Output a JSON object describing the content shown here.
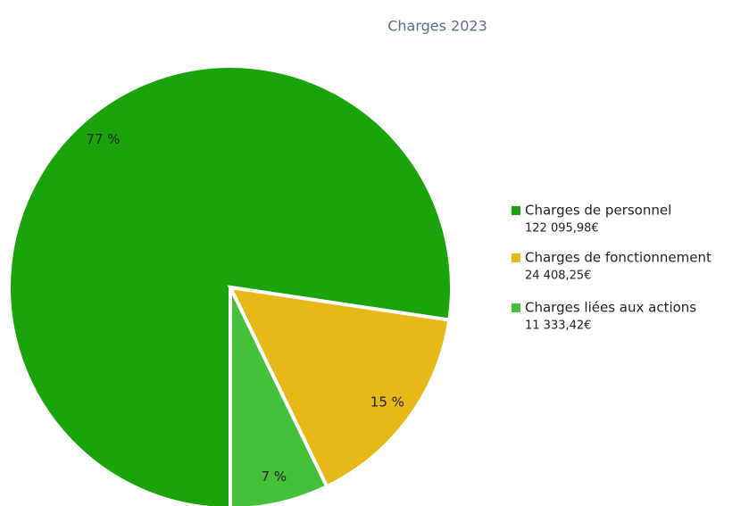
{
  "chart_data": {
    "type": "pie",
    "title": "Charges 2023",
    "series": [
      {
        "name": "Charges de personnel",
        "color": "#1aa30a",
        "values": [
          122095.98
        ],
        "value_labels": [
          "122 095,98€"
        ],
        "percent_labels": [
          "77 %"
        ]
      },
      {
        "name": "Charges de fonctionnement",
        "color": "#e6b818",
        "values": [
          24408.25
        ],
        "value_labels": [
          "24 408,25€"
        ],
        "percent_labels": [
          "15 %"
        ]
      },
      {
        "name": "Charges liées aux actions",
        "color": "#44c03a",
        "values": [
          11333.42
        ],
        "value_labels": [
          "11 333,42€"
        ],
        "percent_labels": [
          "7 %"
        ]
      }
    ],
    "legend": "right"
  }
}
